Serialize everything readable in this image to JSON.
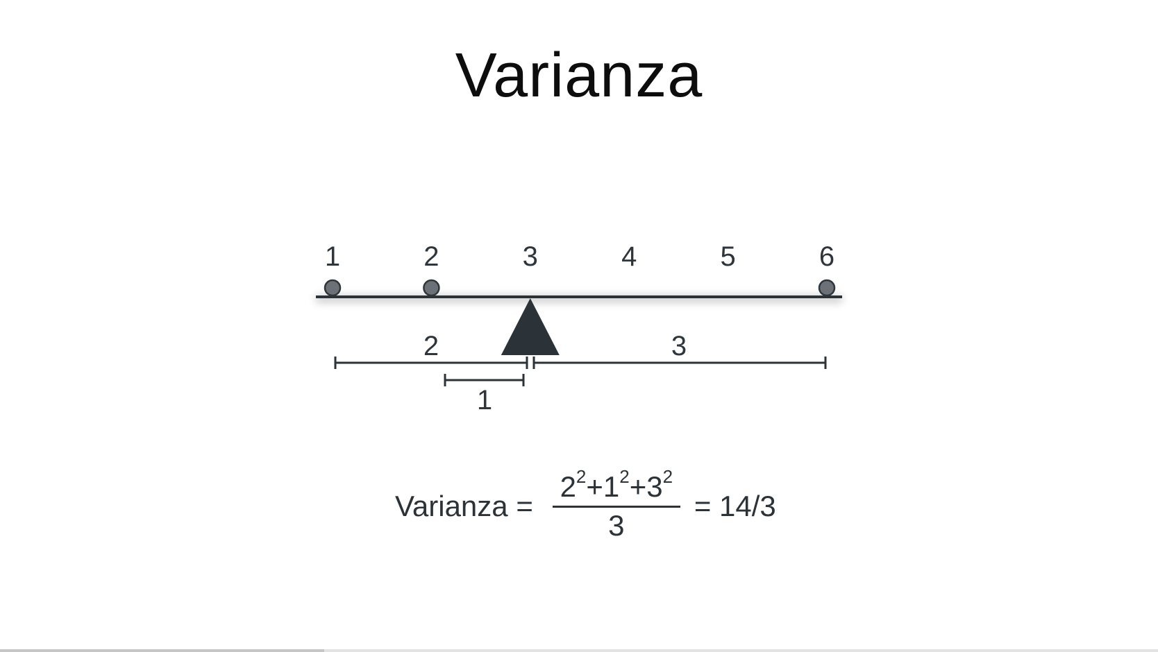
{
  "slide": {
    "title": "Varianza",
    "progress": 0.28
  },
  "scale": {
    "ticks": [
      "1",
      "2",
      "3",
      "4",
      "5",
      "6"
    ],
    "data_points": [
      1,
      2,
      6
    ],
    "fulcrum_at": 3
  },
  "distances": {
    "left_long_label": "2",
    "right_label": "3",
    "left_short_label": "1"
  },
  "formula": {
    "lhs": "Varianza =",
    "numerator_parts": [
      {
        "base": "2",
        "exp": "2"
      },
      {
        "base": "+1",
        "exp": "2"
      },
      {
        "base": "+3",
        "exp": "2"
      }
    ],
    "denominator": "3",
    "rhs": "= 14/3"
  },
  "colors": {
    "ink": "#2b3238",
    "point_fill": "#6b7176",
    "point_stroke": "#2f363b",
    "fulcrum": "#2b3238"
  }
}
